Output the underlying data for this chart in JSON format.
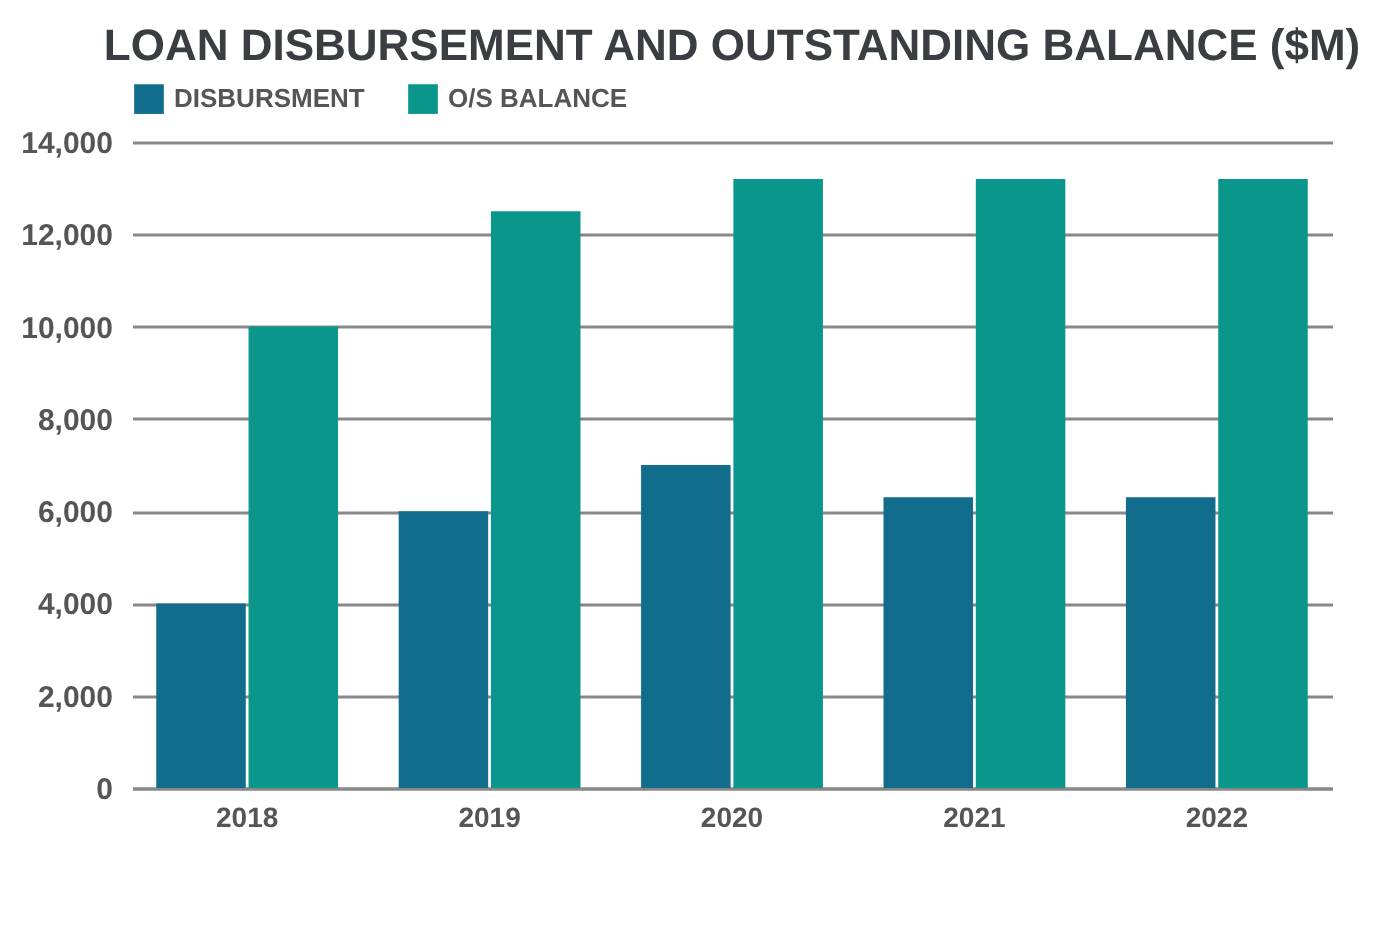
{
  "chart_data": {
    "type": "bar",
    "title": "LOAN DISBURSEMENT AND OUTSTANDING BALANCE ($M)",
    "categories": [
      "2018",
      "2019",
      "2020",
      "2021",
      "2022"
    ],
    "series": [
      {
        "name": "DISBURSMENT",
        "color": "#126d8c",
        "values": [
          4000,
          6000,
          7000,
          6300,
          6300
        ]
      },
      {
        "name": "O/S BALANCE",
        "color": "#0b968c",
        "values": [
          10000,
          12500,
          13200,
          13200,
          13200
        ]
      }
    ],
    "ylim": [
      0,
      14000
    ],
    "yticks": [
      0,
      {
        "value": 2000,
        "label": "2,000"
      },
      {
        "value": 4000,
        "label": "4,000"
      },
      {
        "value": 6000,
        "label": "6,000"
      },
      {
        "value": 8000,
        "label": "8,000"
      },
      {
        "value": 10000,
        "label": "10,000"
      },
      {
        "value": 12000,
        "label": "12,000"
      },
      {
        "value": 14000,
        "label": "14,000"
      }
    ],
    "grid": "y",
    "legend": "top left"
  }
}
